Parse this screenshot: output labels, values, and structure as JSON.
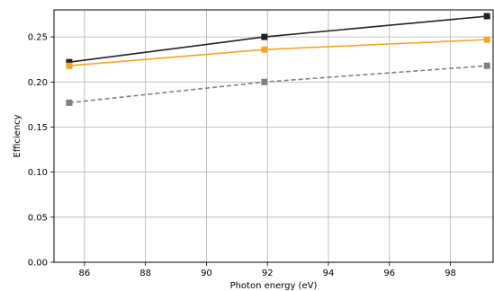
{
  "chart_data": {
    "type": "line",
    "title": "",
    "xlabel": "Photon energy (eV)",
    "ylabel": "Efficiency",
    "xlim": [
      85.0,
      99.4
    ],
    "ylim": [
      0.0,
      0.28
    ],
    "x_ticks": [
      86,
      88,
      90,
      92,
      94,
      96,
      98
    ],
    "y_ticks": [
      0.0,
      0.05,
      0.1,
      0.15,
      0.2,
      0.25
    ],
    "grid": true,
    "legend": false,
    "series": [
      {
        "color": "#222222",
        "line_style": "solid",
        "marker": "square",
        "x": [
          85.5,
          91.9,
          99.2
        ],
        "y": [
          0.222,
          0.25,
          0.273
        ]
      },
      {
        "color": "#f5a623",
        "line_style": "solid",
        "marker": "square",
        "x": [
          85.5,
          91.9,
          99.2
        ],
        "y": [
          0.218,
          0.236,
          0.247
        ]
      },
      {
        "color": "#808080",
        "line_style": "dashed",
        "marker": "square",
        "x": [
          85.5,
          91.9,
          99.2
        ],
        "y": [
          0.177,
          0.2,
          0.218
        ]
      }
    ]
  }
}
